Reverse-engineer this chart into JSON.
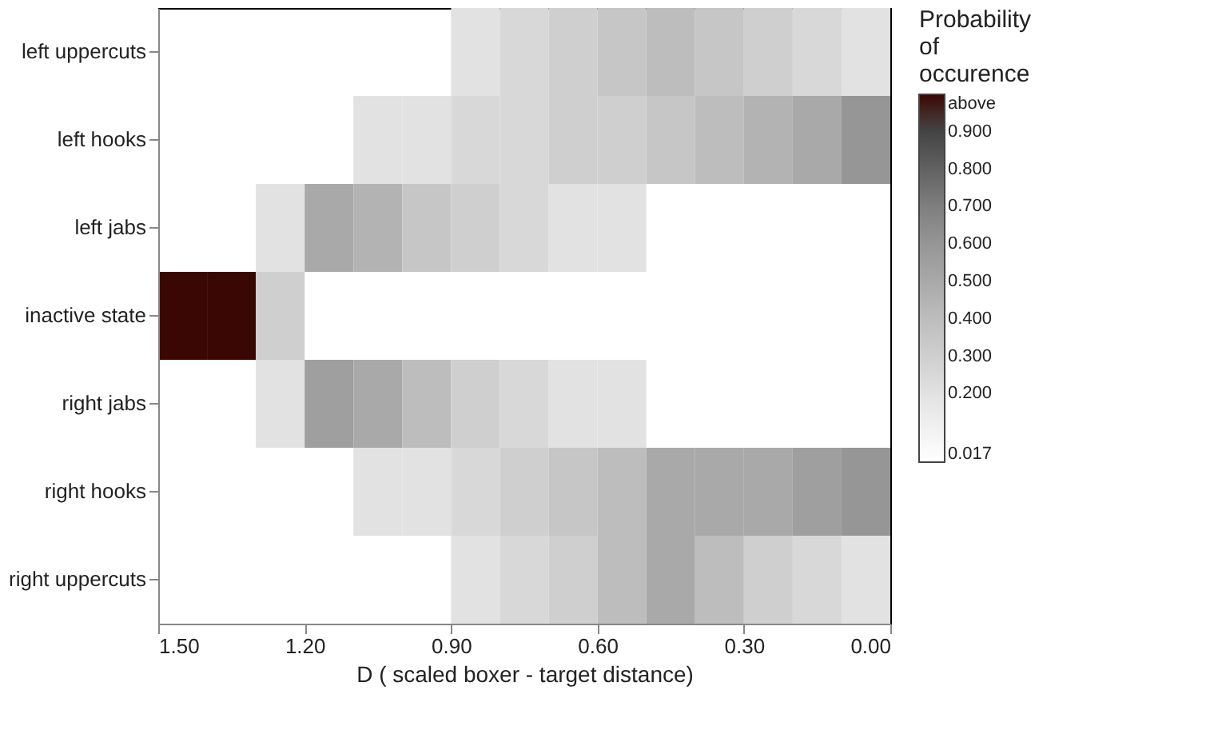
{
  "chart_data": {
    "type": "heatmap",
    "xlabel": "D ( scaled boxer - target distance)",
    "clabel": "Probability of occurence",
    "x": [
      1.45,
      1.35,
      1.25,
      1.15,
      1.05,
      0.95,
      0.85,
      0.75,
      0.65,
      0.55,
      0.45,
      0.35,
      0.25,
      0.15,
      0.05
    ],
    "y_categories": [
      "left uppercuts",
      "left hooks",
      "left jabs",
      "inactive state",
      "right jabs",
      "right hooks",
      "right uppercuts"
    ],
    "cells": [
      [
        null,
        null,
        null,
        null,
        null,
        null,
        0.2,
        0.25,
        0.3,
        0.35,
        0.4,
        0.35,
        0.3,
        0.25,
        0.2
      ],
      [
        null,
        null,
        null,
        null,
        0.2,
        0.2,
        0.25,
        0.25,
        0.3,
        0.3,
        0.35,
        0.4,
        0.45,
        0.5,
        0.6
      ],
      [
        null,
        null,
        0.2,
        0.5,
        0.45,
        0.35,
        0.3,
        0.25,
        0.2,
        0.2,
        null,
        null,
        null,
        null,
        null
      ],
      [
        1.0,
        1.0,
        0.3,
        null,
        null,
        null,
        null,
        null,
        null,
        null,
        null,
        null,
        null,
        null,
        null
      ],
      [
        null,
        null,
        0.2,
        0.55,
        0.5,
        0.4,
        0.3,
        0.25,
        0.2,
        0.2,
        null,
        null,
        null,
        null,
        null
      ],
      [
        null,
        null,
        null,
        null,
        0.2,
        0.2,
        0.25,
        0.3,
        0.35,
        0.4,
        0.5,
        0.5,
        0.5,
        0.55,
        0.6
      ],
      [
        null,
        null,
        null,
        null,
        null,
        null,
        0.2,
        0.25,
        0.3,
        0.4,
        0.5,
        0.4,
        0.3,
        0.25,
        0.2
      ]
    ],
    "xlim": [
      1.5,
      0.0
    ],
    "xticks": [
      {
        "value": 1.5,
        "label": "1.50"
      },
      {
        "value": 1.2,
        "label": "1.20"
      },
      {
        "value": 0.9,
        "label": "0.90"
      },
      {
        "value": 0.6,
        "label": "0.60"
      },
      {
        "value": 0.3,
        "label": "0.30"
      },
      {
        "value": 0.0,
        "label": "0.00"
      }
    ],
    "cticks": [
      0.017,
      {
        "value": 0.2,
        "label": "0.200"
      },
      {
        "value": 0.3,
        "label": "0.300"
      },
      {
        "value": 0.4,
        "label": "0.400"
      },
      {
        "value": 0.5,
        "label": "0.500"
      },
      {
        "value": 0.6,
        "label": "0.600"
      },
      {
        "value": 0.7,
        "label": "0.700"
      },
      {
        "value": 0.8,
        "label": "0.800"
      },
      {
        "value": 0.9,
        "label": "0.900"
      },
      {
        "value": 1.0,
        "label": "above"
      }
    ],
    "grid": false
  }
}
